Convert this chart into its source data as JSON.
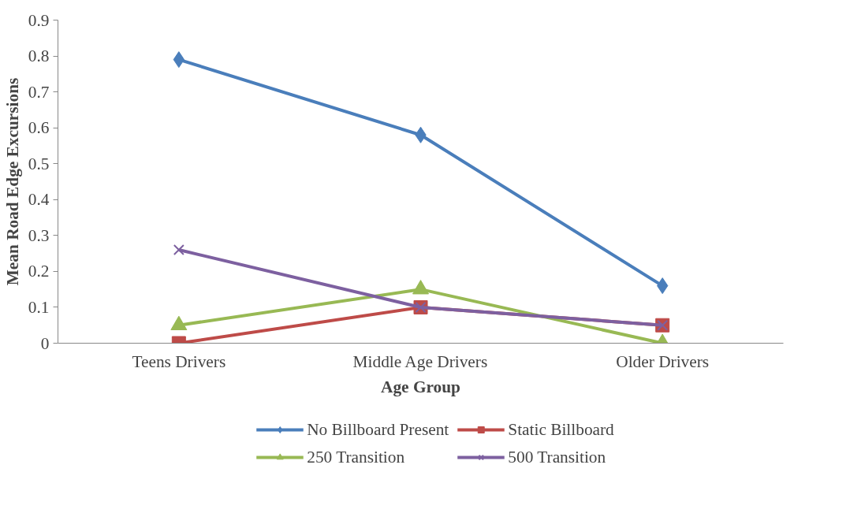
{
  "chart_data": {
    "type": "line",
    "xlabel": "Age Group",
    "ylabel": "Mean Road Edge Excursions",
    "categories": [
      "Teens Drivers",
      "Middle Age Drivers",
      "Older Drivers"
    ],
    "ylim": [
      0,
      0.9
    ],
    "yticks": [
      0,
      0.1,
      0.2,
      0.3,
      0.4,
      0.5,
      0.6,
      0.7,
      0.8,
      0.9
    ],
    "grid": false,
    "legend": "bottom",
    "series": [
      {
        "name": "No Billboard Present",
        "color": "#4a7ebb",
        "marker": "diamond",
        "values": [
          0.79,
          0.58,
          0.16
        ]
      },
      {
        "name": "Static Billboard",
        "color": "#be4b48",
        "marker": "square",
        "values": [
          0,
          0.1,
          0.05
        ]
      },
      {
        "name": "250 Transition",
        "color": "#98b954",
        "marker": "triangle",
        "values": [
          0.05,
          0.15,
          0
        ]
      },
      {
        "name": "500 Transition",
        "color": "#7d60a0",
        "marker": "cross",
        "values": [
          0.26,
          0.1,
          0.05
        ]
      }
    ]
  }
}
